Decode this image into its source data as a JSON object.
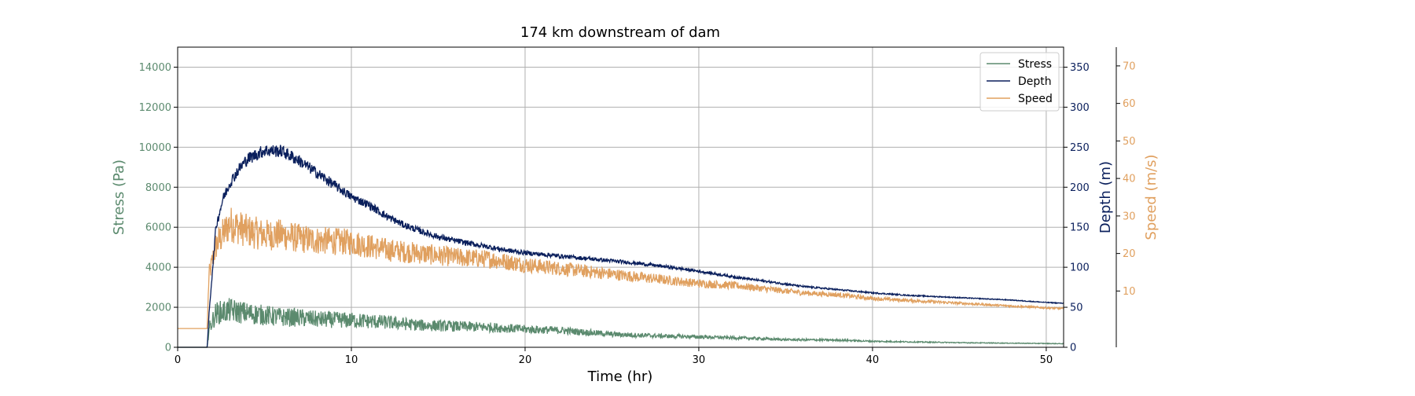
{
  "chart_data": {
    "type": "line",
    "title": "174 km downstream of dam",
    "xlabel": "Time (hr)",
    "xlim": [
      0,
      51
    ],
    "xticks": [
      0,
      10,
      20,
      30,
      40,
      50
    ],
    "grid": true,
    "legend_position": "top-right",
    "axes": [
      {
        "id": "stress",
        "label": "Stress (Pa)",
        "side": "left",
        "color": "#5b8a6e",
        "ylim": [
          0,
          15000
        ],
        "ticks": [
          0,
          2000,
          4000,
          6000,
          8000,
          10000,
          12000,
          14000
        ]
      },
      {
        "id": "depth",
        "label": "Depth (m)",
        "side": "right",
        "color": "#0a1f5c",
        "ylim": [
          0,
          375
        ],
        "ticks": [
          0,
          50,
          100,
          150,
          200,
          250,
          300,
          350
        ]
      },
      {
        "id": "speed",
        "label": "Speed (m/s)",
        "side": "right-offset",
        "color": "#e0a05f",
        "ylim": [
          -5,
          75
        ],
        "ticks": [
          10,
          20,
          30,
          40,
          50,
          60,
          70
        ]
      }
    ],
    "series": [
      {
        "name": "Stress",
        "axis": "stress",
        "color": "#5b8a6e",
        "noise": 0.34,
        "x": [
          0,
          1.7,
          1.8,
          2.2,
          3,
          4,
          5,
          6,
          7,
          8,
          10,
          12,
          14,
          16,
          18,
          20,
          22,
          25,
          28,
          30,
          33,
          35,
          38,
          40,
          45,
          51
        ],
        "y": [
          0,
          0,
          900,
          1700,
          1850,
          1700,
          1600,
          1500,
          1480,
          1400,
          1350,
          1250,
          1100,
          1050,
          1000,
          900,
          850,
          650,
          560,
          520,
          450,
          380,
          360,
          300,
          230,
          180
        ]
      },
      {
        "name": "Depth",
        "axis": "depth",
        "color": "#0a1f5c",
        "noise": 0.035,
        "x": [
          0,
          1.7,
          1.8,
          2.2,
          2.6,
          3,
          3.5,
          4,
          5,
          6,
          7,
          8,
          9,
          10,
          11,
          12,
          13,
          14,
          15,
          16,
          17,
          18,
          19,
          20,
          22,
          24,
          26,
          28,
          30,
          32,
          34,
          36,
          38,
          40,
          42,
          44,
          46,
          48,
          50,
          51
        ],
        "y": [
          0,
          0,
          40,
          150,
          185,
          205,
          222,
          235,
          246,
          245,
          233,
          218,
          203,
          188,
          178,
          164,
          153,
          145,
          138,
          133,
          129,
          125,
          121,
          118,
          114,
          110,
          106,
          101,
          95,
          88,
          82,
          76,
          72,
          68,
          65,
          63,
          61,
          59,
          56,
          55
        ]
      },
      {
        "name": "Speed",
        "axis": "speed",
        "color": "#e0a05f",
        "noise": 0.18,
        "x": [
          0,
          1.7,
          1.8,
          2.2,
          3,
          4,
          5,
          6,
          7,
          8,
          10,
          12,
          14,
          16,
          18,
          20,
          22,
          24,
          26,
          28,
          30,
          32,
          34,
          36,
          38,
          40,
          42,
          44,
          46,
          48,
          50,
          51
        ],
        "y": [
          0,
          0,
          14,
          22,
          28,
          26,
          25,
          25,
          24,
          23.5,
          23,
          21,
          20,
          19,
          18.5,
          17,
          16,
          15,
          14,
          13,
          12,
          11.5,
          10.5,
          9.5,
          9,
          8,
          7.5,
          7,
          6.5,
          6,
          5.5,
          5.3
        ]
      }
    ]
  }
}
